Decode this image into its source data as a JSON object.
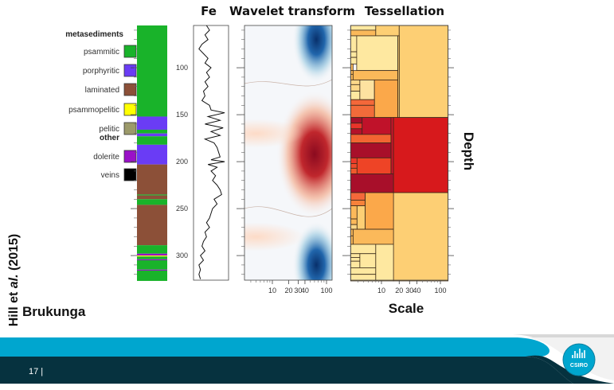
{
  "slide": {
    "location": "Brukunga",
    "citation_prefix": "Hill et ",
    "citation_italic": "al.",
    "citation_suffix": " (2015)",
    "page_number": "17 |",
    "logo_text": "CSIRO"
  },
  "legend": {
    "group1": "metasediments",
    "group2": "other",
    "items": [
      {
        "label": "psammitic",
        "color": "#19b32a"
      },
      {
        "label": "porphyritic",
        "color": "#6a3cf5"
      },
      {
        "label": "laminated",
        "color": "#8c5038"
      },
      {
        "label": "psammopelitic",
        "color": "#ffff00"
      },
      {
        "label": "pelitic",
        "color": "#9c9a6a"
      },
      {
        "label": "dolerite",
        "color": "#9a10c8"
      },
      {
        "label": "veins",
        "color": "#000000"
      }
    ]
  },
  "chart_data": [
    {
      "type": "table",
      "panel": "lithology",
      "ylabel": "Depth",
      "yticks": [
        100,
        150,
        200,
        250,
        300
      ],
      "ylim": [
        55,
        327
      ],
      "intervals": [
        {
          "from": 55,
          "to": 152,
          "unit": "psammitic"
        },
        {
          "from": 152,
          "to": 166,
          "unit": "porphyritic"
        },
        {
          "from": 166,
          "to": 170,
          "unit": "psammitic"
        },
        {
          "from": 170,
          "to": 173,
          "unit": "porphyritic"
        },
        {
          "from": 173,
          "to": 182,
          "unit": "psammitic"
        },
        {
          "from": 182,
          "to": 203,
          "unit": "porphyritic"
        },
        {
          "from": 203,
          "to": 235,
          "unit": "laminated"
        },
        {
          "from": 235,
          "to": 236,
          "unit": "psammitic"
        },
        {
          "from": 236,
          "to": 240,
          "unit": "laminated"
        },
        {
          "from": 240,
          "to": 246,
          "unit": "psammitic"
        },
        {
          "from": 246,
          "to": 289,
          "unit": "laminated"
        },
        {
          "from": 289,
          "to": 298,
          "unit": "psammitic"
        },
        {
          "from": 298,
          "to": 300,
          "unit": "dolerite"
        },
        {
          "from": 300,
          "to": 301,
          "unit": "psammopelitic"
        },
        {
          "from": 301,
          "to": 304,
          "unit": "psammitic"
        },
        {
          "from": 304,
          "to": 305,
          "unit": "dolerite"
        },
        {
          "from": 305,
          "to": 315,
          "unit": "psammitic"
        },
        {
          "from": 315,
          "to": 316,
          "unit": "dolerite"
        },
        {
          "from": 316,
          "to": 327,
          "unit": "psammitic"
        }
      ]
    },
    {
      "type": "line",
      "title": "Fe",
      "depth": [
        55,
        60,
        65,
        70,
        75,
        80,
        85,
        90,
        95,
        100,
        105,
        110,
        115,
        120,
        125,
        130,
        135,
        140,
        145,
        148,
        152,
        156,
        160,
        164,
        168,
        172,
        176,
        180,
        185,
        190,
        195,
        198,
        200,
        203,
        206,
        210,
        215,
        220,
        225,
        230,
        235,
        240,
        245,
        250,
        255,
        260,
        265,
        270,
        275,
        280,
        285,
        290,
        295,
        300,
        305,
        310,
        315,
        320,
        325
      ],
      "fe_relative": [
        0.35,
        0.45,
        0.3,
        0.4,
        0.2,
        0.1,
        0.25,
        0.4,
        0.3,
        0.5,
        0.35,
        0.45,
        0.3,
        0.4,
        0.25,
        0.3,
        0.2,
        0.45,
        0.5,
        0.95,
        0.4,
        0.8,
        0.3,
        0.9,
        0.5,
        0.8,
        0.3,
        0.6,
        0.7,
        0.75,
        0.8,
        0.5,
        0.95,
        0.4,
        0.7,
        0.5,
        0.65,
        0.55,
        0.7,
        0.8,
        0.85,
        0.6,
        0.7,
        0.55,
        0.5,
        0.45,
        0.35,
        0.45,
        0.3,
        0.35,
        0.25,
        0.2,
        0.3,
        0.15,
        0.25,
        0.1,
        0.15,
        0.1,
        0.15
      ]
    },
    {
      "type": "heatmap",
      "title": "Wavelet transform",
      "xscale": "log",
      "xlim": [
        3,
        127
      ],
      "xticks": [
        "10",
        "20",
        "30",
        "40",
        "100"
      ],
      "xtick_values": [
        10,
        20,
        30,
        40,
        100
      ],
      "colormap": {
        "positive": "#b2182b",
        "negative": "#2166ac",
        "zero": "#f7f7f7"
      },
      "features": [
        {
          "scale": 65,
          "depth": 70,
          "sign": "negative",
          "strength": 0.9
        },
        {
          "scale": 60,
          "depth": 192,
          "sign": "positive",
          "strength": 1.0
        },
        {
          "scale": 65,
          "depth": 310,
          "sign": "negative",
          "strength": 1.0
        },
        {
          "scale": 5,
          "depth": 170,
          "sign": "positive",
          "strength": 0.2
        },
        {
          "scale": 5,
          "depth": 280,
          "sign": "positive",
          "strength": 0.15
        }
      ]
    },
    {
      "type": "heatmap",
      "title": "Tessellation",
      "xscale": "log",
      "xlim": [
        3,
        135
      ],
      "xticks": [
        "10",
        "20",
        "30",
        "40",
        "100"
      ],
      "xtick_values": [
        10,
        20,
        30,
        40,
        100
      ],
      "xlabel": "Scale",
      "ylabel": "Depth",
      "blocks": [
        {
          "s": [
            3,
            8
          ],
          "d": [
            55,
            60
          ],
          "c": "#fee8a0"
        },
        {
          "s": [
            3,
            8
          ],
          "d": [
            60,
            66
          ],
          "c": "#fbb95a"
        },
        {
          "s": [
            8,
            20
          ],
          "d": [
            55,
            66
          ],
          "c": "#fdcf74"
        },
        {
          "s": [
            20,
            135
          ],
          "d": [
            55,
            153
          ],
          "c": "#fdcf74"
        },
        {
          "s": [
            3,
            3.8
          ],
          "d": [
            66,
            83
          ],
          "c": "#fee8a0"
        },
        {
          "s": [
            3,
            3.8
          ],
          "d": [
            83,
            89
          ],
          "c": "#fee8a0"
        },
        {
          "s": [
            3,
            3.8
          ],
          "d": [
            89,
            96
          ],
          "c": "#fee8a0"
        },
        {
          "s": [
            3.8,
            19
          ],
          "d": [
            66,
            103
          ],
          "c": "#fee8a0"
        },
        {
          "s": [
            3,
            3.3
          ],
          "d": [
            96,
            103
          ],
          "c": "#fbb95a"
        },
        {
          "s": [
            3,
            3.3
          ],
          "d": [
            103,
            107
          ],
          "c": "#fbb95a"
        },
        {
          "s": [
            3,
            3.3
          ],
          "d": [
            107,
            113
          ],
          "c": "#fbb95a"
        },
        {
          "s": [
            3.3,
            19
          ],
          "d": [
            103,
            113
          ],
          "c": "#fbb95a"
        },
        {
          "s": [
            3,
            4.3
          ],
          "d": [
            113,
            118
          ],
          "c": "#fdd888"
        },
        {
          "s": [
            3,
            4.3
          ],
          "d": [
            118,
            125
          ],
          "c": "#fdd888"
        },
        {
          "s": [
            3,
            4.3
          ],
          "d": [
            125,
            134
          ],
          "c": "#fee8a0"
        },
        {
          "s": [
            4.3,
            7.6
          ],
          "d": [
            113,
            134
          ],
          "c": "#fde2a0"
        },
        {
          "s": [
            7.6,
            19
          ],
          "d": [
            113,
            153
          ],
          "c": "#fba84a"
        },
        {
          "s": [
            3,
            7.6
          ],
          "d": [
            134,
            140
          ],
          "c": "#f4683a"
        },
        {
          "s": [
            3,
            7.6
          ],
          "d": [
            140,
            153
          ],
          "c": "#f26b3a"
        },
        {
          "s": [
            19,
            20
          ],
          "d": [
            66,
            153
          ],
          "c": "#fdcf74"
        },
        {
          "s": [
            16,
            135
          ],
          "d": [
            153,
            233
          ],
          "c": "#d7191c"
        },
        {
          "s": [
            3,
            4.7
          ],
          "d": [
            153,
            159
          ],
          "c": "#a50f2a"
        },
        {
          "s": [
            3,
            4.7
          ],
          "d": [
            159,
            165
          ],
          "c": "#e8342a"
        },
        {
          "s": [
            3,
            4.7
          ],
          "d": [
            165,
            171
          ],
          "c": "#b4122a"
        },
        {
          "s": [
            4.7,
            14.5
          ],
          "d": [
            153,
            171
          ],
          "c": "#c0122a"
        },
        {
          "s": [
            14.5,
            16
          ],
          "d": [
            153,
            213
          ],
          "c": "#c8152a"
        },
        {
          "s": [
            3,
            14.5
          ],
          "d": [
            171,
            180
          ],
          "c": "#f26532"
        },
        {
          "s": [
            3,
            14.5
          ],
          "d": [
            180,
            196
          ],
          "c": "#a80f2a"
        },
        {
          "s": [
            3,
            3.85
          ],
          "d": [
            196,
            202
          ],
          "c": "#ee3a2a"
        },
        {
          "s": [
            3,
            3.85
          ],
          "d": [
            202,
            207
          ],
          "c": "#f04a2c"
        },
        {
          "s": [
            3,
            3.85
          ],
          "d": [
            207,
            213
          ],
          "c": "#f05a2c"
        },
        {
          "s": [
            3.85,
            14.5
          ],
          "d": [
            196,
            213
          ],
          "c": "#ee4426"
        },
        {
          "s": [
            3,
            16
          ],
          "d": [
            213,
            233
          ],
          "c": "#a80f2a"
        },
        {
          "s": [
            16,
            135
          ],
          "d": [
            233,
            327
          ],
          "c": "#fdcf74"
        },
        {
          "s": [
            3,
            5.3
          ],
          "d": [
            233,
            241
          ],
          "c": "#f4683a"
        },
        {
          "s": [
            3,
            5.3
          ],
          "d": [
            241,
            247
          ],
          "c": "#f7813a"
        },
        {
          "s": [
            3,
            3.85
          ],
          "d": [
            247,
            261
          ],
          "c": "#fbb95a"
        },
        {
          "s": [
            3,
            3.85
          ],
          "d": [
            261,
            267
          ],
          "c": "#fbb95a"
        },
        {
          "s": [
            3,
            3.85
          ],
          "d": [
            267,
            272
          ],
          "c": "#fdd888"
        },
        {
          "s": [
            3.85,
            5.3
          ],
          "d": [
            247,
            272
          ],
          "c": "#fdcf74"
        },
        {
          "s": [
            5.3,
            16
          ],
          "d": [
            233,
            272
          ],
          "c": "#fba84a"
        },
        {
          "s": [
            3,
            3.3
          ],
          "d": [
            272,
            279
          ],
          "c": "#fbb95a"
        },
        {
          "s": [
            3,
            3.3
          ],
          "d": [
            279,
            288
          ],
          "c": "#fbb95a"
        },
        {
          "s": [
            3.3,
            16
          ],
          "d": [
            272,
            288
          ],
          "c": "#fbb95a"
        },
        {
          "s": [
            3,
            8
          ],
          "d": [
            288,
            298
          ],
          "c": "#fee8a0"
        },
        {
          "s": [
            3,
            4.3
          ],
          "d": [
            298,
            302
          ],
          "c": "#fee8a0"
        },
        {
          "s": [
            3,
            4.3
          ],
          "d": [
            302,
            306
          ],
          "c": "#fee8a0"
        },
        {
          "s": [
            3,
            4.3
          ],
          "d": [
            306,
            313
          ],
          "c": "#fee8a0"
        },
        {
          "s": [
            4.3,
            8
          ],
          "d": [
            298,
            313
          ],
          "c": "#fee8a0"
        },
        {
          "s": [
            3,
            8
          ],
          "d": [
            313,
            320
          ],
          "c": "#fee8a0"
        },
        {
          "s": [
            3,
            8
          ],
          "d": [
            320,
            327
          ],
          "c": "#fee8a0"
        },
        {
          "s": [
            8,
            16
          ],
          "d": [
            288,
            327
          ],
          "c": "#fee8a0"
        }
      ]
    }
  ]
}
